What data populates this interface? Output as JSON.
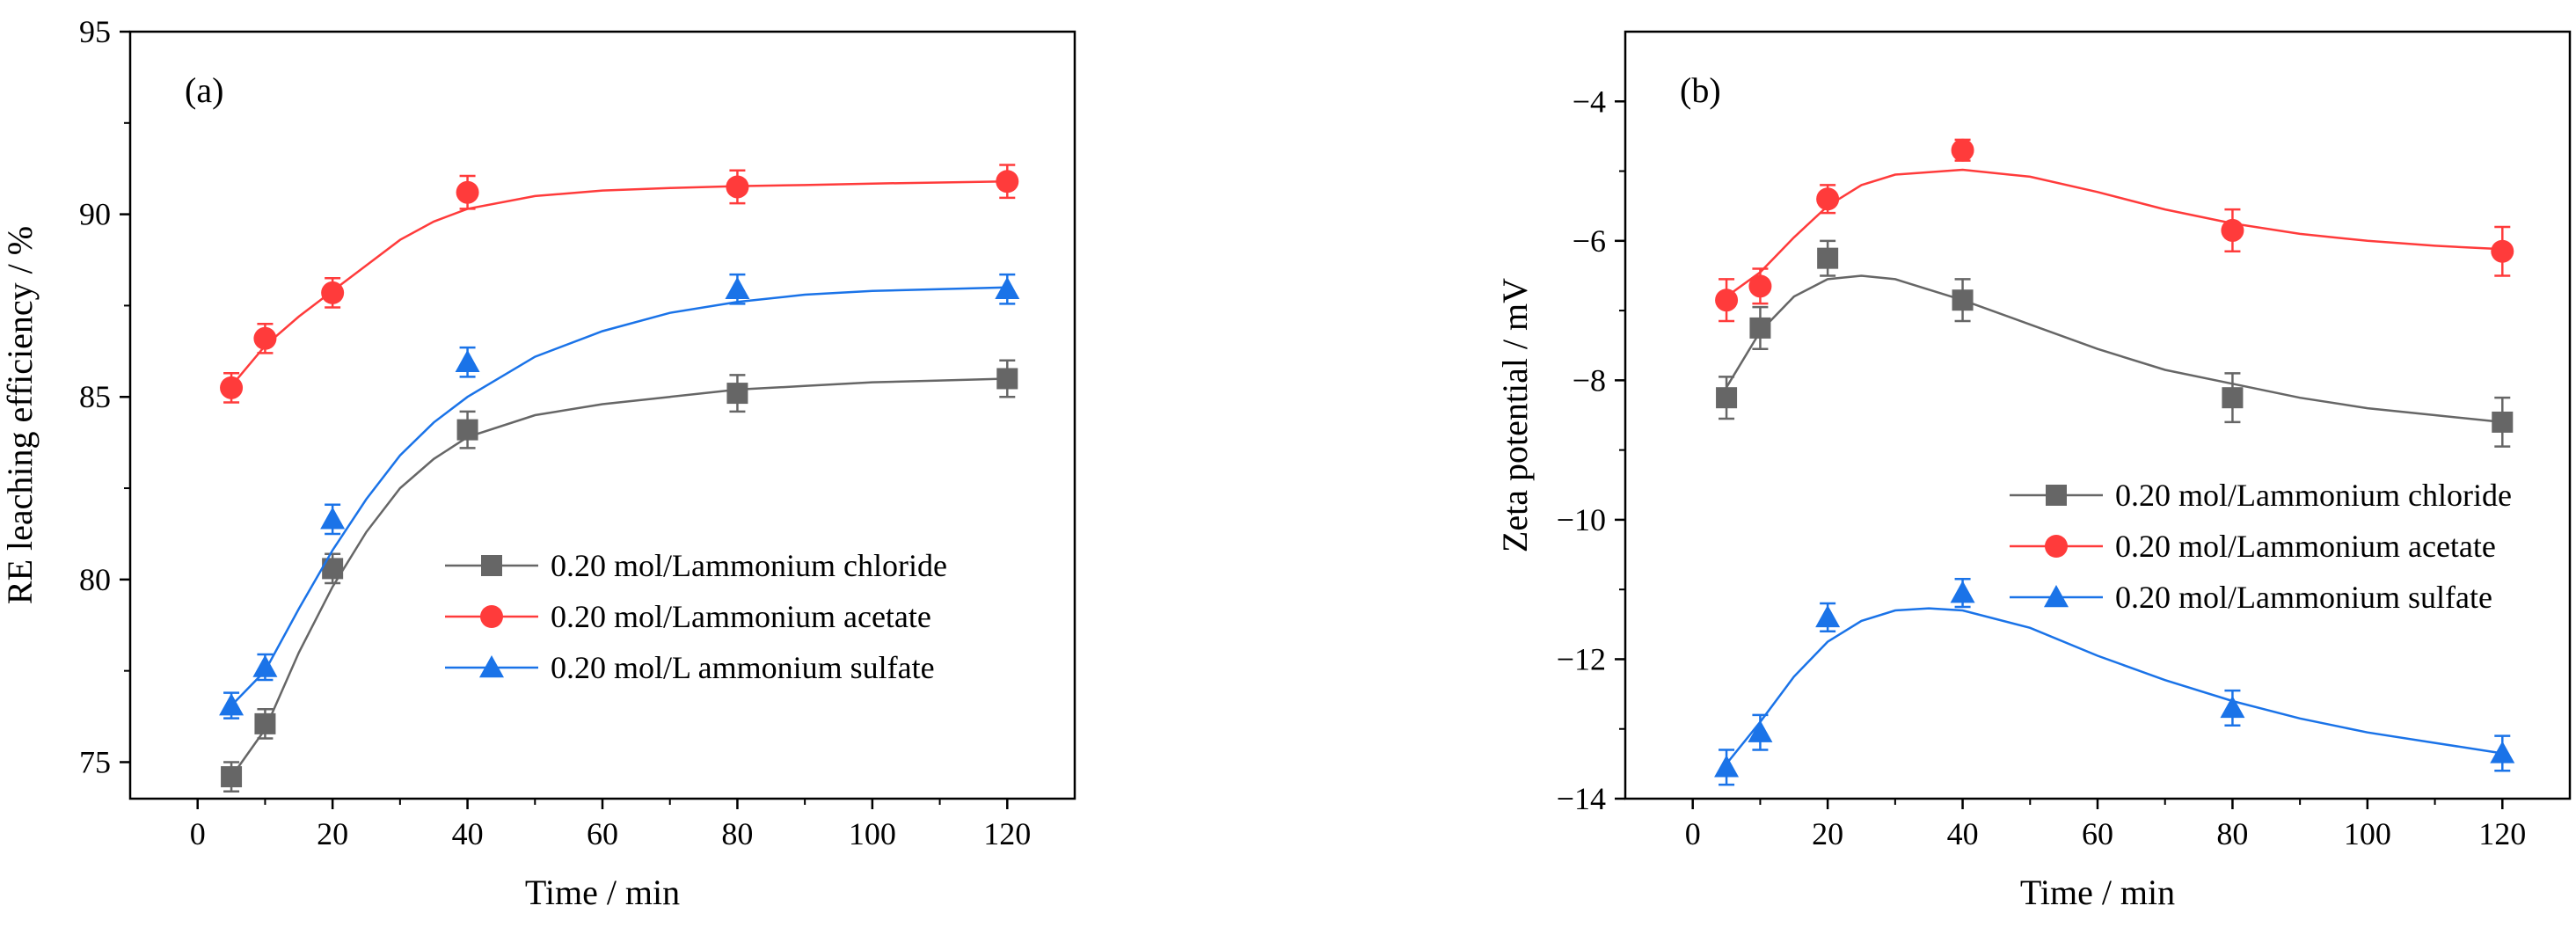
{
  "chart_data": [
    {
      "type": "line",
      "panel_label": "(a)",
      "xlabel": "Time / min",
      "ylabel": "RE leaching efficiency / %",
      "xlim": [
        -10,
        130
      ],
      "ylim": [
        74,
        95
      ],
      "xticks": [
        0,
        20,
        40,
        60,
        80,
        100,
        120
      ],
      "yticks": [
        75,
        80,
        85,
        90,
        95
      ],
      "legend_position": "center-right",
      "series": [
        {
          "name": "0.20 mol/Lammonium chloride",
          "color": "#666666",
          "marker": "square",
          "x": [
            5,
            10,
            20,
            40,
            80,
            120
          ],
          "y": [
            74.6,
            76.05,
            80.3,
            84.1,
            85.1,
            85.5
          ],
          "err": [
            0.4,
            0.4,
            0.4,
            0.5,
            0.5,
            0.5
          ],
          "fit_x": [
            5,
            10,
            15,
            20,
            25,
            30,
            35,
            40,
            50,
            60,
            70,
            80,
            90,
            100,
            110,
            120
          ],
          "fit_y": [
            74.6,
            75.9,
            78.0,
            79.8,
            81.3,
            82.5,
            83.3,
            83.9,
            84.5,
            84.8,
            85.0,
            85.2,
            85.3,
            85.4,
            85.45,
            85.5
          ]
        },
        {
          "name": "0.20 mol/Lammonium acetate",
          "color": "#ff3b3b",
          "marker": "circle",
          "x": [
            5,
            10,
            20,
            40,
            80,
            120
          ],
          "y": [
            85.25,
            86.6,
            87.85,
            90.6,
            90.75,
            90.9
          ],
          "err": [
            0.4,
            0.4,
            0.4,
            0.45,
            0.45,
            0.45
          ],
          "fit_x": [
            5,
            10,
            15,
            20,
            25,
            30,
            35,
            40,
            50,
            60,
            70,
            80,
            90,
            100,
            110,
            120
          ],
          "fit_y": [
            85.3,
            86.4,
            87.2,
            87.9,
            88.6,
            89.3,
            89.8,
            90.15,
            90.5,
            90.65,
            90.72,
            90.77,
            90.8,
            90.84,
            90.87,
            90.9
          ]
        },
        {
          "name": "0.20 mol/L ammonium sulfate",
          "color": "#1a73e8",
          "marker": "triangle",
          "x": [
            5,
            10,
            20,
            40,
            80,
            120
          ],
          "y": [
            76.55,
            77.6,
            81.65,
            85.95,
            87.95,
            87.95
          ],
          "err": [
            0.35,
            0.35,
            0.4,
            0.4,
            0.4,
            0.4
          ],
          "fit_x": [
            5,
            10,
            15,
            20,
            25,
            30,
            35,
            40,
            50,
            60,
            70,
            80,
            90,
            100,
            110,
            120
          ],
          "fit_y": [
            76.55,
            77.5,
            79.2,
            80.8,
            82.2,
            83.4,
            84.3,
            85.0,
            86.1,
            86.8,
            87.3,
            87.6,
            87.8,
            87.9,
            87.95,
            88.0
          ]
        }
      ]
    },
    {
      "type": "line",
      "panel_label": "(b)",
      "xlabel": "Time / min",
      "ylabel": "Zeta potential / mV",
      "xlim": [
        -10,
        130
      ],
      "ylim": [
        -14,
        -3
      ],
      "xticks": [
        0,
        20,
        40,
        60,
        80,
        100,
        120
      ],
      "yticks": [
        -4,
        -6,
        -8,
        -10,
        -12,
        -14
      ],
      "legend_position": "center-right",
      "series": [
        {
          "name": "0.20 mol/Lammonium chloride",
          "color": "#666666",
          "marker": "square",
          "x": [
            5,
            10,
            20,
            40,
            80,
            120
          ],
          "y": [
            -8.25,
            -7.25,
            -6.25,
            -6.85,
            -8.25,
            -8.6
          ],
          "err": [
            0.3,
            0.3,
            0.25,
            0.3,
            0.35,
            0.35
          ],
          "fit_x": [
            5,
            10,
            15,
            20,
            25,
            30,
            40,
            50,
            60,
            70,
            80,
            90,
            100,
            110,
            120
          ],
          "fit_y": [
            -8.1,
            -7.3,
            -6.8,
            -6.55,
            -6.5,
            -6.55,
            -6.85,
            -7.2,
            -7.55,
            -7.85,
            -8.05,
            -8.25,
            -8.4,
            -8.5,
            -8.6
          ]
        },
        {
          "name": "0.20 mol/Lammonium acetate",
          "color": "#ff3b3b",
          "marker": "circle",
          "x": [
            5,
            10,
            20,
            40,
            80,
            120
          ],
          "y": [
            -6.85,
            -6.65,
            -5.4,
            -4.7,
            -5.85,
            -6.15
          ],
          "err": [
            0.3,
            0.25,
            0.2,
            0.15,
            0.3,
            0.35
          ],
          "fit_x": [
            5,
            10,
            15,
            20,
            25,
            30,
            40,
            50,
            60,
            70,
            80,
            90,
            100,
            110,
            120
          ],
          "fit_y": [
            -6.8,
            -6.45,
            -5.95,
            -5.5,
            -5.2,
            -5.05,
            -4.98,
            -5.08,
            -5.3,
            -5.55,
            -5.75,
            -5.9,
            -6.0,
            -6.07,
            -6.12
          ]
        },
        {
          "name": "0.20 mol/Lammonium sulfate",
          "color": "#1a73e8",
          "marker": "triangle",
          "x": [
            5,
            10,
            20,
            40,
            80,
            120
          ],
          "y": [
            -13.55,
            -13.05,
            -11.4,
            -11.05,
            -12.7,
            -13.35
          ],
          "err": [
            0.25,
            0.25,
            0.2,
            0.2,
            0.25,
            0.25
          ],
          "fit_x": [
            5,
            10,
            15,
            20,
            25,
            30,
            35,
            40,
            50,
            60,
            70,
            80,
            90,
            100,
            110,
            120
          ],
          "fit_y": [
            -13.5,
            -12.9,
            -12.25,
            -11.75,
            -11.45,
            -11.3,
            -11.27,
            -11.3,
            -11.55,
            -11.95,
            -12.3,
            -12.6,
            -12.85,
            -13.05,
            -13.2,
            -13.35
          ]
        }
      ]
    }
  ]
}
